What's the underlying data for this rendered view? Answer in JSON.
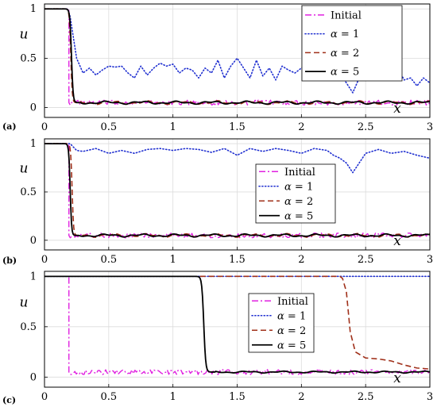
{
  "chart_data": [
    {
      "panel_label": "(a)",
      "type": "line",
      "xlabel": "x",
      "ylabel": "u",
      "xlim": [
        0,
        3
      ],
      "ylim": [
        -0.1,
        1.05
      ],
      "xticks": [
        "0",
        "0.5",
        "1",
        "1.5",
        "2",
        "2.5",
        "3"
      ],
      "yticks": [
        "0",
        "0.5",
        "1"
      ],
      "grid": true,
      "legend_position": "top-right",
      "series": [
        {
          "name": "Initial",
          "color": "#e020e0",
          "style": "dashdot",
          "kind": "initial",
          "front": 0.19,
          "high": 1,
          "low": 0.05,
          "noise": 0.025
        },
        {
          "name": "α = 1",
          "color": "#1f2fd0",
          "style": "dotted",
          "kind": "points",
          "x": [
            0,
            0.18,
            0.2,
            0.22,
            0.25,
            0.3,
            0.35,
            0.4,
            0.45,
            0.5,
            0.55,
            0.6,
            0.65,
            0.7,
            0.75,
            0.8,
            0.85,
            0.9,
            0.95,
            1.0,
            1.05,
            1.1,
            1.15,
            1.2,
            1.25,
            1.3,
            1.35,
            1.4,
            1.45,
            1.5,
            1.55,
            1.6,
            1.65,
            1.7,
            1.75,
            1.8,
            1.85,
            1.9,
            1.95,
            2.0,
            2.05,
            2.1,
            2.15,
            2.2,
            2.25,
            2.3,
            2.35,
            2.4,
            2.45,
            2.5,
            2.55,
            2.6,
            2.65,
            2.7,
            2.75,
            2.8,
            2.85,
            2.9,
            2.95,
            3.0
          ],
          "y": [
            1,
            1,
            0.92,
            0.75,
            0.5,
            0.35,
            0.4,
            0.33,
            0.38,
            0.42,
            0.41,
            0.42,
            0.35,
            0.3,
            0.42,
            0.33,
            0.4,
            0.45,
            0.42,
            0.44,
            0.35,
            0.4,
            0.38,
            0.3,
            0.4,
            0.35,
            0.48,
            0.3,
            0.42,
            0.5,
            0.4,
            0.3,
            0.48,
            0.32,
            0.4,
            0.28,
            0.42,
            0.38,
            0.35,
            0.4,
            0.45,
            0.32,
            0.46,
            0.4,
            0.33,
            0.35,
            0.25,
            0.15,
            0.3,
            0.35,
            0.42,
            0.3,
            0.48,
            0.35,
            0.4,
            0.28,
            0.3,
            0.22,
            0.3,
            0.25
          ]
        },
        {
          "name": "α = 2",
          "color": "#a0301a",
          "style": "dashed",
          "kind": "front",
          "front": 0.205,
          "width": 0.022,
          "high": 1,
          "low": 0.05,
          "noise": 0.012
        },
        {
          "name": "α = 5",
          "color": "#000000",
          "style": "solid",
          "kind": "front",
          "front": 0.21,
          "width": 0.025,
          "high": 1,
          "low": 0.05,
          "noise": 0.01
        }
      ]
    },
    {
      "panel_label": "(b)",
      "type": "line",
      "xlabel": "x",
      "ylabel": "u",
      "xlim": [
        0,
        3
      ],
      "ylim": [
        -0.1,
        1.05
      ],
      "xticks": [
        "0",
        "0.5",
        "1",
        "1.5",
        "2",
        "2.5",
        "3"
      ],
      "yticks": [
        "0",
        "0.5",
        "1"
      ],
      "grid": true,
      "legend_position": "center-right",
      "series": [
        {
          "name": "Initial",
          "color": "#e020e0",
          "style": "dashdot",
          "kind": "initial",
          "front": 0.19,
          "high": 1,
          "low": 0.05,
          "noise": 0.025
        },
        {
          "name": "α = 1",
          "color": "#1f2fd0",
          "style": "dotted",
          "kind": "points",
          "x": [
            0,
            0.2,
            0.25,
            0.3,
            0.4,
            0.5,
            0.6,
            0.7,
            0.8,
            0.9,
            1.0,
            1.1,
            1.2,
            1.3,
            1.4,
            1.5,
            1.6,
            1.7,
            1.8,
            1.9,
            2.0,
            2.1,
            2.2,
            2.25,
            2.3,
            2.35,
            2.4,
            2.45,
            2.5,
            2.6,
            2.7,
            2.8,
            2.9,
            3.0
          ],
          "y": [
            1,
            1,
            0.93,
            0.92,
            0.95,
            0.9,
            0.93,
            0.9,
            0.94,
            0.95,
            0.93,
            0.95,
            0.94,
            0.91,
            0.95,
            0.88,
            0.95,
            0.92,
            0.95,
            0.93,
            0.9,
            0.95,
            0.93,
            0.88,
            0.85,
            0.8,
            0.7,
            0.8,
            0.9,
            0.94,
            0.9,
            0.92,
            0.88,
            0.85
          ]
        },
        {
          "name": "α = 2",
          "color": "#a0301a",
          "style": "dashed",
          "kind": "front",
          "front": 0.215,
          "width": 0.022,
          "high": 1,
          "low": 0.05,
          "noise": 0.012
        },
        {
          "name": "α = 5",
          "color": "#000000",
          "style": "solid",
          "kind": "front",
          "front": 0.2,
          "width": 0.022,
          "high": 1,
          "low": 0.05,
          "noise": 0.01
        }
      ]
    },
    {
      "panel_label": "(c)",
      "type": "line",
      "xlabel": "x",
      "ylabel": "u",
      "xlim": [
        0,
        3
      ],
      "ylim": [
        -0.1,
        1.05
      ],
      "xticks": [
        "0",
        "0.5",
        "1",
        "1.5",
        "2",
        "2.5",
        "3"
      ],
      "yticks": [
        "0",
        "0.5",
        "1"
      ],
      "grid": true,
      "legend_position": "center-right",
      "series": [
        {
          "name": "Initial",
          "color": "#e020e0",
          "style": "dashdot",
          "kind": "initial",
          "front": 0.19,
          "high": 1,
          "low": 0.05,
          "noise": 0.025
        },
        {
          "name": "α = 1",
          "color": "#1f2fd0",
          "style": "dotted",
          "kind": "points",
          "x": [
            0,
            3.0
          ],
          "y": [
            1,
            1
          ]
        },
        {
          "name": "α = 2",
          "color": "#a0301a",
          "style": "dashed",
          "kind": "points",
          "x": [
            1.21,
            2.3,
            2.32,
            2.35,
            2.38,
            2.42,
            2.5,
            2.6,
            2.7,
            2.8,
            2.9,
            3.0
          ],
          "y": [
            1,
            1,
            0.98,
            0.85,
            0.45,
            0.25,
            0.19,
            0.18,
            0.16,
            0.12,
            0.09,
            0.08
          ]
        },
        {
          "name": "α = 5",
          "color": "#000000",
          "style": "solid",
          "kind": "front",
          "front": 1.24,
          "width": 0.03,
          "high": 1,
          "low": 0.05,
          "noise": 0.006
        }
      ]
    }
  ]
}
